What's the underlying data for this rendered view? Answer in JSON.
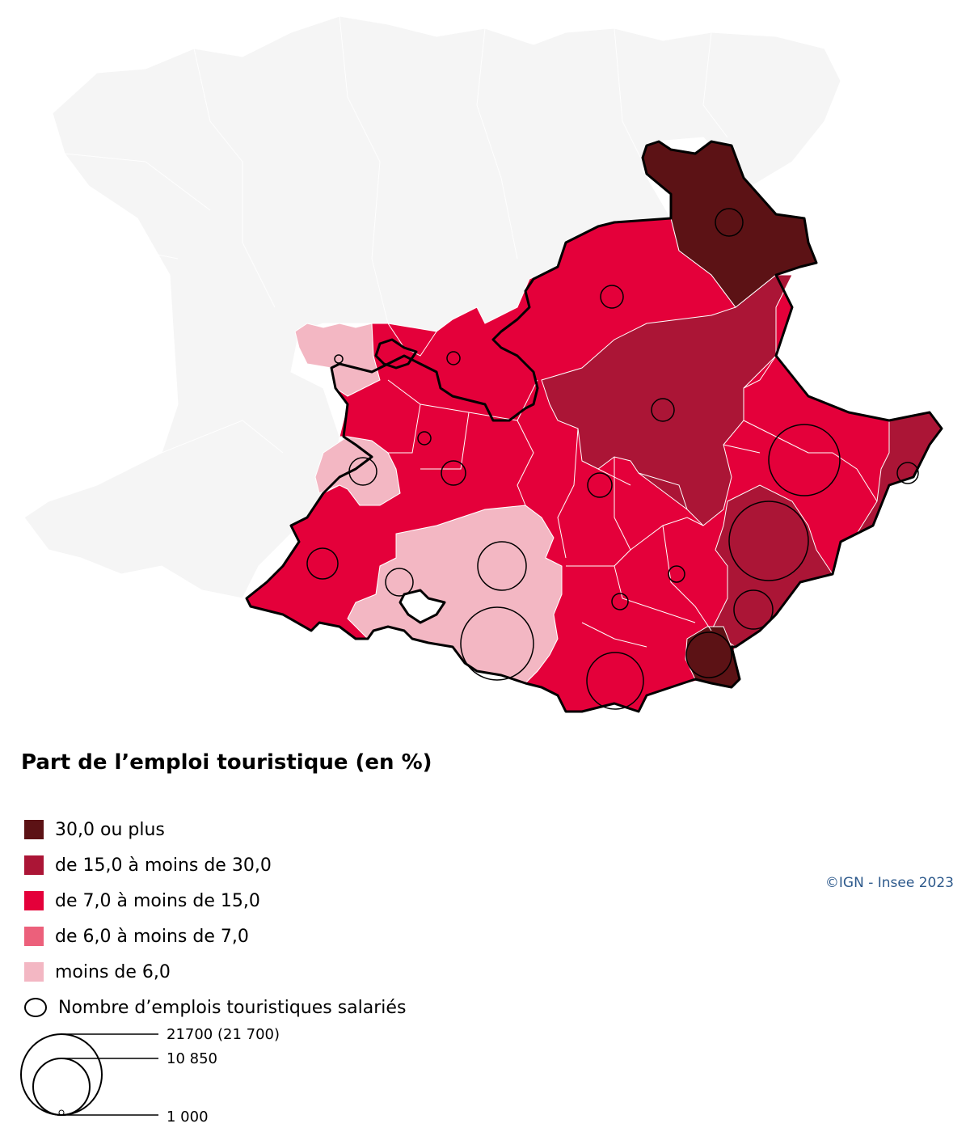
{
  "legend": {
    "title": "Part de l’emploi touristique (en %)",
    "classes": [
      {
        "label": "30,0 ou plus",
        "color": "#5c1215"
      },
      {
        "label": "de 15,0 à moins de 30,0",
        "color": "#ab1536"
      },
      {
        "label": "de 7,0 à moins de 15,0",
        "color": "#e4003a"
      },
      {
        "label": "de 6,0 à moins de 7,0",
        "color": "#ec607b"
      },
      {
        "label": "moins de 6,0",
        "color": "#f3b7c3"
      }
    ],
    "circle_label": "Nombre d’emplois touristiques salariés",
    "size_labels": {
      "max": "21700 (21 700)",
      "mid": "10 850",
      "min": "1 000"
    }
  },
  "credit": "©IGN - Insee 2023",
  "colors": {
    "background_land": "#f5f5f5",
    "border": "#000000",
    "internal_border": "#ffffff"
  }
}
